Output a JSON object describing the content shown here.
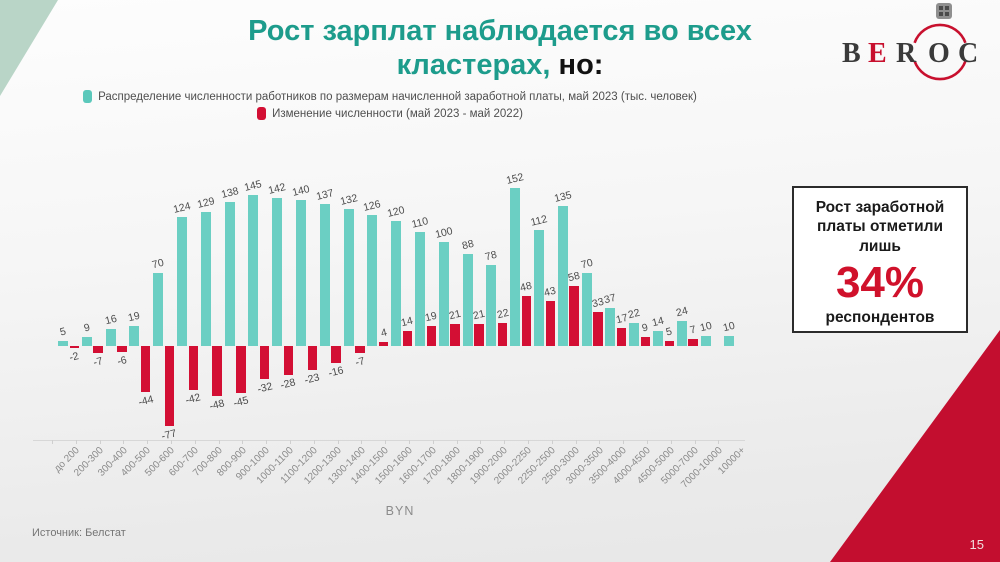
{
  "title": {
    "line1": "Рост зарплат наблюдается во всех",
    "line2_teal": "кластерах,",
    "line2_black": "но:"
  },
  "logo": {
    "letters": [
      "B",
      "E",
      "R",
      "O",
      "C"
    ],
    "accent_color": "#c8102e",
    "letter_color": "#3a3a3a"
  },
  "icons": {
    "top_right": "grid-icon"
  },
  "legend": {
    "items": [
      {
        "label": "Распределение численности работников по размерам начисленной заработной платы, май 2023 (тыс. человек)",
        "color": "#5bc8bb"
      },
      {
        "label": "Изменение численности (май 2023 - май 2022)",
        "color": "#d30f34"
      }
    ]
  },
  "chart_data": {
    "type": "bar",
    "categories": [
      "до 200",
      "200-300",
      "300-400",
      "400-500",
      "500-600",
      "600-700",
      "700-800",
      "800-900",
      "900-1000",
      "1000-1100",
      "1100-1200",
      "1200-1300",
      "1300-1400",
      "1400-1500",
      "1500-1600",
      "1600-1700",
      "1700-1800",
      "1800-1900",
      "1900-2000",
      "2000-2250",
      "2250-2500",
      "2500-3000",
      "3000-3500",
      "3500-4000",
      "4000-4500",
      "4500-5000",
      "5000-7000",
      "7000-10000",
      "10000+"
    ],
    "series": [
      {
        "name": "Распределение численности работников по размерам начисленной заработной платы, май 2023 (тыс. человек)",
        "color": "#6bcfc3",
        "values": [
          5,
          9,
          16,
          19,
          70,
          124,
          129,
          138,
          145,
          142,
          140,
          137,
          132,
          126,
          120,
          110,
          100,
          88,
          78,
          152,
          112,
          135,
          70,
          37,
          22,
          14,
          24,
          10,
          10
        ]
      },
      {
        "name": "Изменение численности (май 2023 - май 2022)",
        "color": "#d30f34",
        "values": [
          -2,
          -7,
          -6,
          -44,
          -77,
          -42,
          -48,
          -45,
          -32,
          -28,
          -23,
          -16,
          -7,
          4,
          14,
          19,
          21,
          21,
          22,
          48,
          43,
          58,
          33,
          17,
          9,
          5,
          7,
          null,
          null
        ]
      }
    ],
    "xlabel": "BYN",
    "ylim": [
      -100,
      160
    ],
    "grid": false,
    "legend_position": "top",
    "value_labels": true
  },
  "callout": {
    "line1": "Рост заработной платы отметили лишь",
    "percent": "34%",
    "line2": "респондентов",
    "percent_color": "#d0112b"
  },
  "footer": {
    "source": "Источник: Белстат",
    "page_number": "15"
  },
  "colors": {
    "title_teal": "#1d9c8c",
    "bar_teal": "#6bcfc3",
    "bar_red": "#d30f34",
    "corner_green": "#b9d5c7",
    "corner_red": "#c30e2f"
  }
}
